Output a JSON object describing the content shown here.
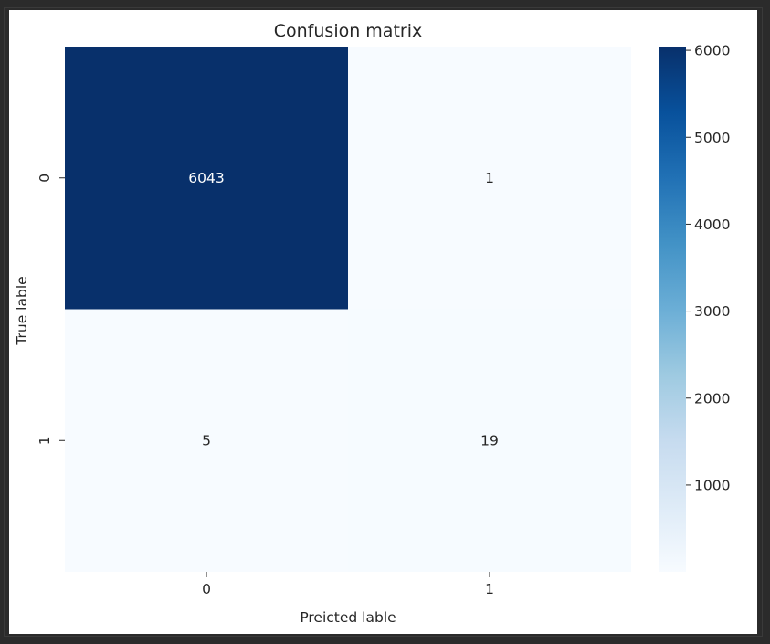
{
  "chart_data": {
    "type": "heatmap",
    "title": "Confusion matrix",
    "xlabel": "Preicted lable",
    "ylabel": "True lable",
    "x_categories": [
      "0",
      "1"
    ],
    "y_categories": [
      "0",
      "1"
    ],
    "values": [
      [
        6043,
        1
      ],
      [
        5,
        19
      ]
    ],
    "colormap": "Blues",
    "colormap_range": [
      1,
      6043
    ],
    "colorbar": {
      "ticks": [
        1000,
        2000,
        3000,
        4000,
        5000,
        6000
      ],
      "tick_labels": [
        "1000",
        "2000",
        "3000",
        "4000",
        "5000",
        "6000"
      ]
    },
    "colors": {
      "low": "#f7fbff",
      "high": "#08306b",
      "annot_dark_bg": "#ffffff",
      "annot_light_bg": "#262626",
      "text": "#262626"
    }
  }
}
